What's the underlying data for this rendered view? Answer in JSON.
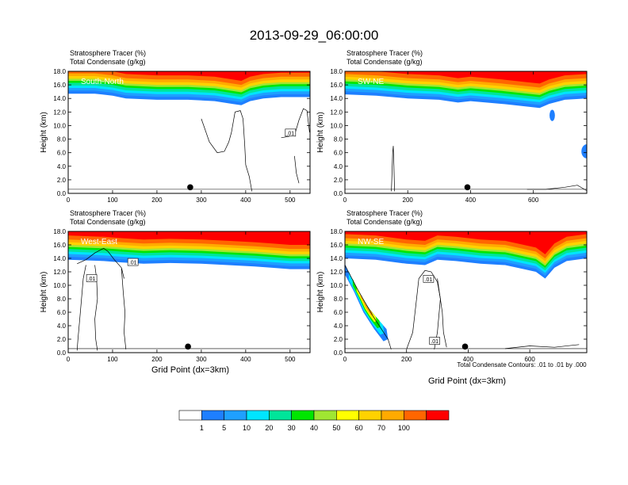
{
  "title": "2013-09-29_06:00:00",
  "panel_header": {
    "line1": "Stratosphere Tracer   (%)",
    "line2": "Total Condensate   (g/kg)"
  },
  "ylabel": "Height (km)",
  "xlabel": "Grid Point (dx=3km)",
  "contour_note": "Total Condensate Contours: .01 to .01 by .000",
  "contour_label": ".01",
  "colorbar": {
    "levels": [
      "1",
      "5",
      "10",
      "20",
      "30",
      "40",
      "50",
      "60",
      "70",
      "100"
    ],
    "colors": [
      "#ffffff",
      "#1e7fff",
      "#1fa0ff",
      "#00e5ff",
      "#00e59a",
      "#00e600",
      "#a0e632",
      "#ffff00",
      "#ffd200",
      "#ffaa00",
      "#ff6600",
      "#ff0000"
    ]
  },
  "chart_data": [
    {
      "type": "heatmap",
      "name": "South-North",
      "ylim": [
        0,
        18
      ],
      "yticks": [
        "0.0",
        "2.0",
        "4.0",
        "6.0",
        "8.0",
        "10.0",
        "12.0",
        "14.0",
        "16.0",
        "18.0"
      ],
      "xlim": [
        0,
        545
      ],
      "xticks": [
        0,
        100,
        200,
        300,
        400,
        500
      ],
      "base": [
        [
          0,
          14.7
        ],
        [
          60,
          14.7
        ],
        [
          100,
          14.4
        ],
        [
          130,
          14.0
        ],
        [
          200,
          13.8
        ],
        [
          270,
          13.8
        ],
        [
          330,
          13.6
        ],
        [
          370,
          13.2
        ],
        [
          390,
          13.0
        ],
        [
          410,
          13.6
        ],
        [
          440,
          14.0
        ],
        [
          480,
          14.2
        ],
        [
          545,
          14.2
        ]
      ],
      "blobs": [],
      "dot_x": 275,
      "contours": [
        [
          [
            300,
            11.0
          ],
          [
            308,
            9.5
          ],
          [
            318,
            7.6
          ],
          [
            336,
            6.0
          ],
          [
            352,
            6.2
          ],
          [
            362,
            7.6
          ],
          [
            368,
            9.0
          ],
          [
            376,
            12.0
          ],
          [
            388,
            12.2
          ],
          [
            394,
            11.0
          ],
          [
            398,
            7.0
          ],
          [
            400,
            4.2
          ],
          [
            408,
            2.5
          ],
          [
            414,
            0.3
          ]
        ],
        [
          [
            480,
            8.2
          ],
          [
            498,
            8.4
          ],
          [
            512,
            9.0
          ],
          [
            520,
            10.8
          ],
          [
            530,
            12.5
          ],
          [
            538,
            12.2
          ],
          [
            544,
            9.0
          ]
        ],
        [
          [
            510,
            5.5
          ],
          [
            514,
            3.0
          ],
          [
            520,
            1.5
          ]
        ]
      ],
      "labels": [
        [
          500,
          8.9
        ]
      ]
    },
    {
      "type": "heatmap",
      "name": "SW-NE",
      "ylim": [
        0,
        18
      ],
      "yticks": [
        "0.0",
        "2.0",
        "4.0",
        "6.0",
        "8.0",
        "10.0",
        "12.0",
        "14.0",
        "16.0",
        "18.0"
      ],
      "xlim": [
        0,
        770
      ],
      "xticks": [
        0,
        200,
        400,
        600
      ],
      "base": [
        [
          0,
          14.6
        ],
        [
          100,
          14.4
        ],
        [
          200,
          14.0
        ],
        [
          300,
          13.8
        ],
        [
          360,
          13.4
        ],
        [
          400,
          13.6
        ],
        [
          500,
          13.2
        ],
        [
          540,
          13.0
        ],
        [
          580,
          12.8
        ],
        [
          620,
          12.6
        ],
        [
          650,
          13.2
        ],
        [
          700,
          13.8
        ],
        [
          770,
          14.0
        ]
      ],
      "blobs": [
        [
          660,
          11.5,
          0.35,
          0.6
        ],
        [
          770,
          6.2,
          1.2,
          0.8
        ]
      ],
      "dot_x": 390,
      "contours": [
        [
          [
            148,
            0.3
          ],
          [
            150,
            3.0
          ],
          [
            152,
            6.0
          ],
          [
            154,
            7.0
          ],
          [
            156,
            4.0
          ],
          [
            158,
            0.3
          ]
        ],
        [
          [
            580,
            0.6
          ],
          [
            640,
            0.6
          ],
          [
            700,
            0.9
          ],
          [
            740,
            1.2
          ],
          [
            770,
            0.4
          ]
        ]
      ],
      "labels": []
    },
    {
      "type": "heatmap",
      "name": "West-East",
      "ylim": [
        0,
        18
      ],
      "yticks": [
        "0.0",
        "2.0",
        "4.0",
        "6.0",
        "8.0",
        "10.0",
        "12.0",
        "14.0",
        "16.0",
        "18.0"
      ],
      "xlim": [
        0,
        545
      ],
      "xticks": [
        0,
        100,
        200,
        300,
        400,
        500
      ],
      "base": [
        [
          0,
          13.8
        ],
        [
          80,
          13.6
        ],
        [
          120,
          13.4
        ],
        [
          170,
          13.2
        ],
        [
          230,
          13.3
        ],
        [
          300,
          13.2
        ],
        [
          360,
          13.0
        ],
        [
          420,
          12.8
        ],
        [
          460,
          12.6
        ],
        [
          500,
          12.4
        ],
        [
          545,
          12.4
        ]
      ],
      "blobs": [],
      "dot_x": 270,
      "contours": [
        [
          [
            20,
            13.2
          ],
          [
            40,
            13.8
          ],
          [
            60,
            14.8
          ],
          [
            80,
            15.5
          ],
          [
            90,
            15.0
          ],
          [
            104,
            13.8
          ],
          [
            120,
            12.6
          ],
          [
            126,
            11.0
          ]
        ],
        [
          [
            40,
            13.0
          ],
          [
            34,
            11.0
          ],
          [
            30,
            8.0
          ],
          [
            26,
            5.0
          ],
          [
            22,
            2.0
          ],
          [
            20,
            0.3
          ]
        ],
        [
          [
            60,
            13.0
          ],
          [
            64,
            11.0
          ],
          [
            66,
            8.0
          ],
          [
            60,
            5.0
          ],
          [
            62,
            2.0
          ],
          [
            66,
            0.3
          ]
        ],
        [
          [
            120,
            12.5
          ],
          [
            124,
            9.0
          ],
          [
            128,
            6.0
          ],
          [
            126,
            3.0
          ],
          [
            130,
            0.5
          ]
        ]
      ],
      "labels": [
        [
          52,
          11.0
        ],
        [
          145,
          13.4
        ]
      ]
    },
    {
      "type": "heatmap",
      "name": "NW-SE",
      "ylim": [
        0,
        18
      ],
      "yticks": [
        "0.0",
        "2.0",
        "4.0",
        "6.0",
        "8.0",
        "10.0",
        "12.0",
        "14.0",
        "16.0",
        "18.0"
      ],
      "xlim": [
        0,
        785
      ],
      "xticks": [
        0,
        200,
        400,
        600
      ],
      "base": [
        [
          0,
          14.0
        ],
        [
          100,
          13.8
        ],
        [
          200,
          13.2
        ],
        [
          260,
          13.0
        ],
        [
          300,
          13.8
        ],
        [
          360,
          13.6
        ],
        [
          440,
          13.2
        ],
        [
          520,
          13.0
        ],
        [
          560,
          12.6
        ],
        [
          620,
          12.0
        ],
        [
          650,
          11.0
        ],
        [
          680,
          12.6
        ],
        [
          720,
          13.6
        ],
        [
          785,
          14.0
        ]
      ],
      "blobs": [],
      "dot_x": 390,
      "contours": [
        [
          [
            200,
            0.5
          ],
          [
            220,
            3.0
          ],
          [
            230,
            7.0
          ],
          [
            240,
            11.0
          ],
          [
            260,
            12.2
          ],
          [
            280,
            12.0
          ],
          [
            300,
            10.5
          ],
          [
            310,
            8.0
          ],
          [
            300,
            3.0
          ],
          [
            290,
            0.5
          ]
        ],
        [
          [
            300,
            11.0
          ],
          [
            316,
            6.0
          ],
          [
            320,
            3.0
          ],
          [
            330,
            0.8
          ]
        ],
        [
          [
            0,
            13.0
          ],
          [
            40,
            9.5
          ],
          [
            90,
            5.5
          ],
          [
            140,
            2.0
          ],
          [
            150,
            0.5
          ]
        ],
        [
          [
            520,
            0.6
          ],
          [
            600,
            1.0
          ],
          [
            680,
            0.8
          ],
          [
            760,
            1.2
          ]
        ]
      ],
      "labels": [
        [
          270,
          10.9
        ],
        [
          290,
          1.7
        ]
      ],
      "plume": [
        [
          0,
          13.2
        ],
        [
          20,
          11.0
        ],
        [
          50,
          8.5
        ],
        [
          80,
          6.5
        ],
        [
          110,
          4.8
        ],
        [
          135,
          3.5
        ],
        [
          140,
          2.0
        ],
        [
          125,
          1.7
        ],
        [
          95,
          3.5
        ],
        [
          60,
          6.0
        ],
        [
          30,
          9.0
        ],
        [
          0,
          11.6
        ]
      ]
    }
  ]
}
